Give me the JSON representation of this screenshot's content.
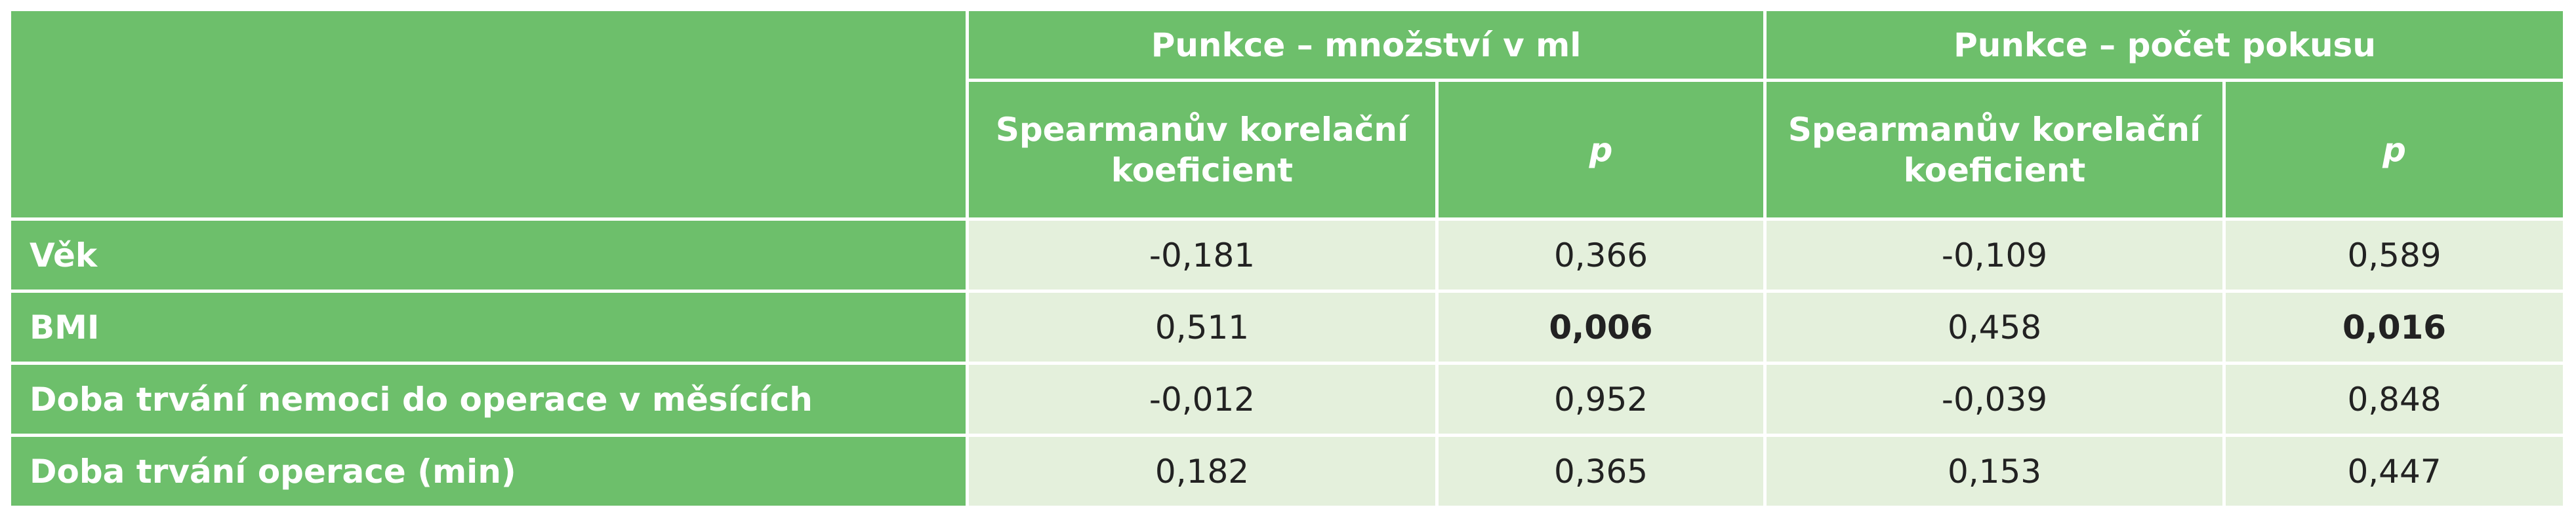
{
  "table": {
    "groups": [
      "Punkce – množství v ml",
      "Punkce – počet pokusu"
    ],
    "subheaders": [
      "Spearmanův korelační koeficient",
      "p",
      "Spearmanův korelační koeficient",
      "p"
    ],
    "rows": [
      {
        "label": "Věk",
        "values": [
          "-0,181",
          "0,366",
          "-0,109",
          "0,589"
        ]
      },
      {
        "label": "BMI",
        "values": [
          "0,511",
          "0,006",
          "0,458",
          "0,016"
        ]
      },
      {
        "label": "Doba trvání nemoci do operace v měsících",
        "values": [
          "-0,012",
          "0,952",
          "-0,039",
          "0,848"
        ]
      },
      {
        "label": "Doba trvání operace (min)",
        "values": [
          "0,182",
          "0,365",
          "0,153",
          "0,447"
        ]
      }
    ]
  }
}
